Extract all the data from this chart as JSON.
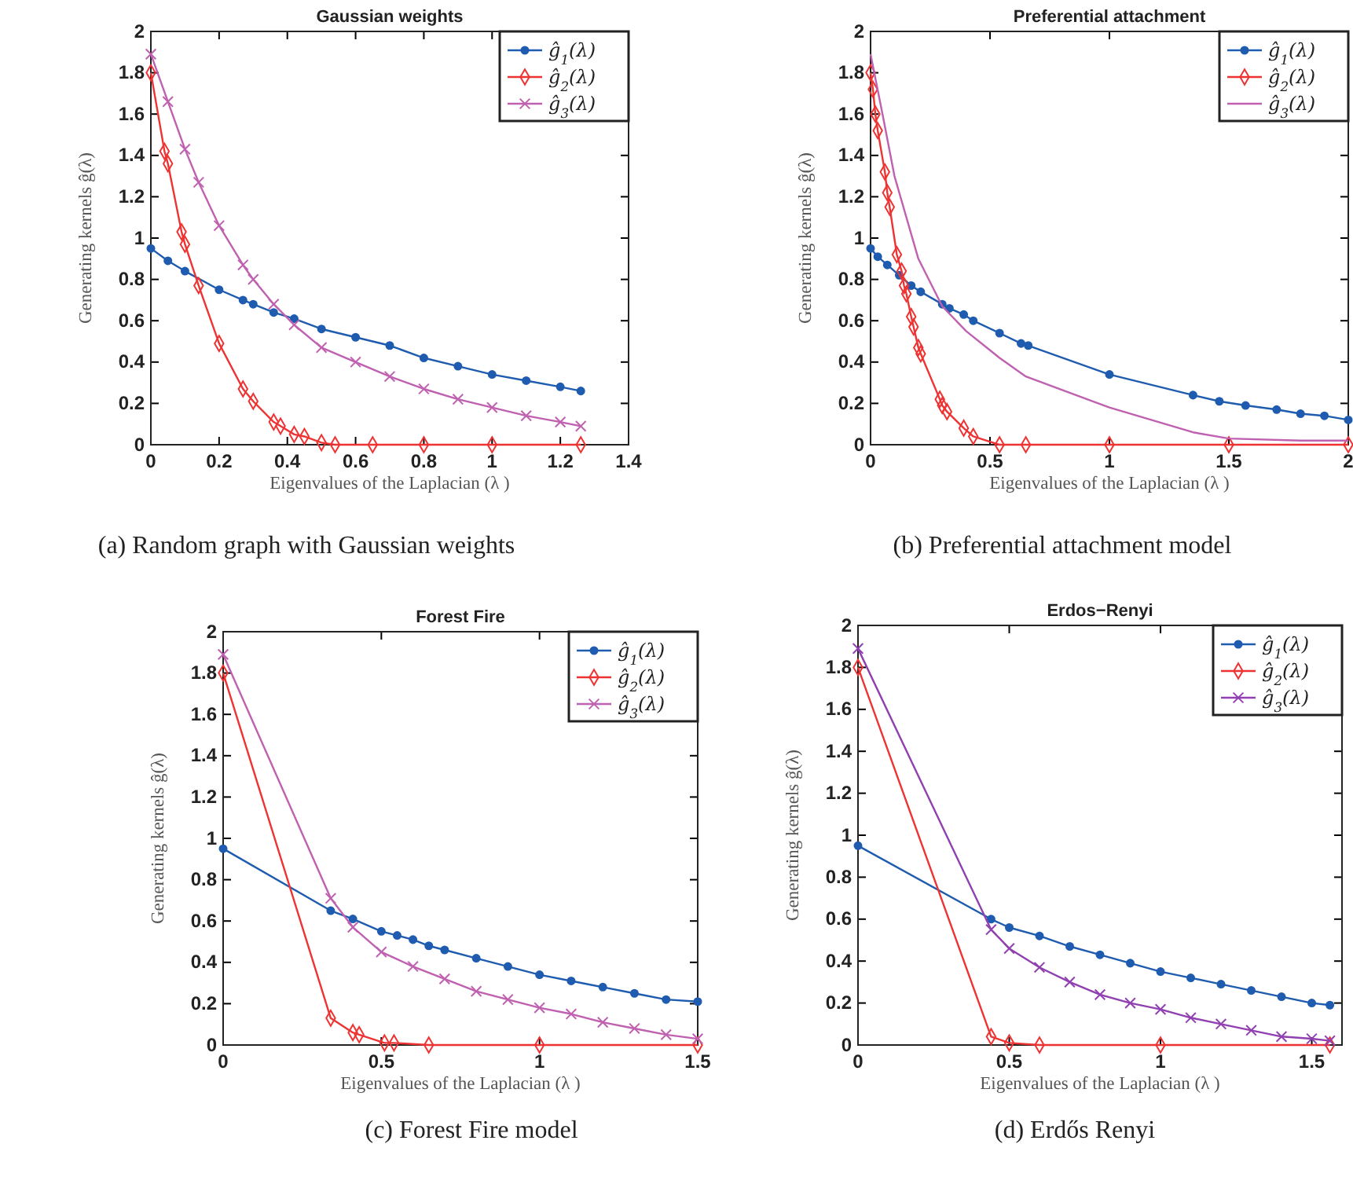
{
  "chart_data": [
    {
      "type": "line",
      "title": "Gaussian weights",
      "xlabel": "Eigenvalues of the Laplacian (λ )",
      "ylabel": "Generating kernels ĝ(λ)",
      "xlim": [
        0,
        1.4
      ],
      "xticks": [
        0,
        0.2,
        0.4,
        0.6,
        0.8,
        1,
        1.2,
        1.4
      ],
      "ylim": [
        0,
        2
      ],
      "yticks": [
        0,
        0.2,
        0.4,
        0.6,
        0.8,
        1,
        1.2,
        1.4,
        1.6,
        1.8,
        2
      ],
      "legend": "top right",
      "annotations": [
        "(a) Random graph with Gaussian weights"
      ],
      "series": [
        {
          "name": "ĝ$_{1}$(λ)",
          "color": "#1f5cb0",
          "marker": "circle",
          "x": [
            0,
            0.05,
            0.1,
            0.2,
            0.27,
            0.3,
            0.36,
            0.42,
            0.5,
            0.6,
            0.7,
            0.8,
            0.9,
            1.0,
            1.1,
            1.2,
            1.26
          ],
          "values": [
            0.95,
            0.89,
            0.84,
            0.75,
            0.7,
            0.68,
            0.64,
            0.61,
            0.56,
            0.52,
            0.48,
            0.42,
            0.38,
            0.34,
            0.31,
            0.28,
            0.26
          ]
        },
        {
          "name": "ĝ$_{2}$(λ)",
          "color": "#ee3333",
          "marker": "diamond",
          "x": [
            0,
            0.04,
            0.05,
            0.09,
            0.1,
            0.14,
            0.2,
            0.27,
            0.3,
            0.36,
            0.38,
            0.42,
            0.45,
            0.5,
            0.54,
            0.65,
            0.8,
            1.0,
            1.26
          ],
          "values": [
            1.8,
            1.42,
            1.36,
            1.03,
            0.97,
            0.77,
            0.49,
            0.27,
            0.21,
            0.11,
            0.09,
            0.05,
            0.04,
            0.01,
            0,
            0,
            0,
            0,
            0
          ]
        },
        {
          "name": "ĝ$_{3}$(λ)",
          "color": "#c060b0",
          "marker": "cross",
          "x": [
            0,
            0.05,
            0.1,
            0.14,
            0.2,
            0.27,
            0.3,
            0.36,
            0.42,
            0.5,
            0.6,
            0.7,
            0.8,
            0.9,
            1.0,
            1.1,
            1.2,
            1.26
          ],
          "values": [
            1.89,
            1.66,
            1.43,
            1.27,
            1.06,
            0.87,
            0.8,
            0.68,
            0.58,
            0.47,
            0.4,
            0.33,
            0.27,
            0.22,
            0.18,
            0.14,
            0.11,
            0.09
          ]
        }
      ]
    },
    {
      "type": "line",
      "title": "Preferential attachment",
      "xlabel": "Eigenvalues of the Laplacian (λ )",
      "ylabel": "Generating kernels ĝ(λ)",
      "xlim": [
        0,
        2
      ],
      "xticks": [
        0,
        0.5,
        1,
        1.5,
        2
      ],
      "ylim": [
        0,
        2
      ],
      "yticks": [
        0,
        0.2,
        0.4,
        0.6,
        0.8,
        1,
        1.2,
        1.4,
        1.6,
        1.8,
        2
      ],
      "legend": "top right",
      "annotations": [
        "(b) Preferential attachment model"
      ],
      "series": [
        {
          "name": "ĝ$_{1}$(λ)",
          "color": "#1f5cb0",
          "marker": "circle",
          "x": [
            0,
            0.03,
            0.07,
            0.12,
            0.17,
            0.21,
            0.3,
            0.33,
            0.39,
            0.43,
            0.54,
            0.63,
            0.66,
            1.0,
            1.35,
            1.46,
            1.57,
            1.7,
            1.8,
            1.9,
            2.0
          ],
          "values": [
            0.95,
            0.91,
            0.87,
            0.82,
            0.77,
            0.74,
            0.68,
            0.66,
            0.63,
            0.6,
            0.54,
            0.49,
            0.48,
            0.34,
            0.24,
            0.21,
            0.19,
            0.17,
            0.15,
            0.14,
            0.12
          ]
        },
        {
          "name": "ĝ$_{2}$(λ)",
          "color": "#ee3333",
          "marker": "diamond",
          "x": [
            0,
            0.01,
            0.02,
            0.03,
            0.06,
            0.07,
            0.08,
            0.11,
            0.13,
            0.14,
            0.15,
            0.17,
            0.18,
            0.2,
            0.21,
            0.29,
            0.3,
            0.32,
            0.39,
            0.43,
            0.54,
            0.65,
            1.0,
            1.5,
            2.0
          ],
          "values": [
            1.8,
            1.72,
            1.6,
            1.52,
            1.32,
            1.22,
            1.15,
            0.92,
            0.84,
            0.77,
            0.73,
            0.62,
            0.57,
            0.47,
            0.44,
            0.22,
            0.19,
            0.16,
            0.08,
            0.04,
            0,
            0,
            0,
            0,
            0
          ]
        },
        {
          "name": "ĝ$_{3}$(λ)",
          "color": "#c060b0",
          "marker": "none",
          "x": [
            0,
            0.05,
            0.1,
            0.2,
            0.3,
            0.4,
            0.54,
            0.65,
            1.0,
            1.35,
            1.5,
            1.8,
            2.0
          ],
          "values": [
            1.89,
            1.6,
            1.3,
            0.9,
            0.67,
            0.55,
            0.42,
            0.33,
            0.18,
            0.06,
            0.03,
            0.02,
            0.02
          ]
        }
      ]
    },
    {
      "type": "line",
      "title": "Forest Fire",
      "xlabel": "Eigenvalues of the Laplacian (λ )",
      "ylabel": "Generating kernels ĝ(λ)",
      "xlim": [
        0,
        1.5
      ],
      "xticks": [
        0,
        0.5,
        1,
        1.5
      ],
      "ylim": [
        0,
        2
      ],
      "yticks": [
        0,
        0.2,
        0.4,
        0.6,
        0.8,
        1,
        1.2,
        1.4,
        1.6,
        1.8,
        2
      ],
      "legend": "top right",
      "annotations": [
        "(c) Forest Fire model"
      ],
      "series": [
        {
          "name": "ĝ$_{1}$(λ)",
          "color": "#1f5cb0",
          "marker": "circle",
          "x": [
            0,
            0.34,
            0.41,
            0.5,
            0.55,
            0.6,
            0.65,
            0.7,
            0.8,
            0.9,
            1.0,
            1.1,
            1.2,
            1.3,
            1.4,
            1.5
          ],
          "values": [
            0.95,
            0.65,
            0.61,
            0.55,
            0.53,
            0.51,
            0.48,
            0.46,
            0.42,
            0.38,
            0.34,
            0.31,
            0.28,
            0.25,
            0.22,
            0.21
          ]
        },
        {
          "name": "ĝ$_{2}$(λ)",
          "color": "#ee3333",
          "marker": "diamond",
          "x": [
            0,
            0.34,
            0.41,
            0.43,
            0.51,
            0.54,
            0.65,
            1.0,
            1.5
          ],
          "values": [
            1.8,
            0.13,
            0.06,
            0.05,
            0.01,
            0.01,
            0,
            0,
            0
          ]
        },
        {
          "name": "ĝ$_{3}$(λ)",
          "color": "#c060b0",
          "marker": "cross",
          "x": [
            0,
            0.34,
            0.41,
            0.5,
            0.6,
            0.7,
            0.8,
            0.9,
            1.0,
            1.1,
            1.2,
            1.3,
            1.4,
            1.5
          ],
          "values": [
            1.89,
            0.71,
            0.57,
            0.45,
            0.38,
            0.32,
            0.26,
            0.22,
            0.18,
            0.15,
            0.11,
            0.08,
            0.05,
            0.03
          ]
        }
      ]
    },
    {
      "type": "line",
      "title": "Erdos−Renyi",
      "xlabel": "Eigenvalues of the Laplacian (λ )",
      "ylabel": "Generating kernels ĝ(λ)",
      "xlim": [
        0,
        1.6
      ],
      "xticks": [
        0,
        0.5,
        1,
        1.5
      ],
      "ylim": [
        0,
        2
      ],
      "yticks": [
        0,
        0.2,
        0.4,
        0.6,
        0.8,
        1,
        1.2,
        1.4,
        1.6,
        1.8,
        2
      ],
      "legend": "top right",
      "annotations": [
        "(d) Erdős Renyi"
      ],
      "series": [
        {
          "name": "ĝ$_{1}$(λ)",
          "color": "#1f5cb0",
          "marker": "circle",
          "x": [
            0,
            0.44,
            0.5,
            0.6,
            0.7,
            0.8,
            0.9,
            1.0,
            1.1,
            1.2,
            1.3,
            1.4,
            1.5,
            1.56
          ],
          "values": [
            0.95,
            0.6,
            0.56,
            0.52,
            0.47,
            0.43,
            0.39,
            0.35,
            0.32,
            0.29,
            0.26,
            0.23,
            0.2,
            0.19
          ]
        },
        {
          "name": "ĝ$_{2}$(λ)",
          "color": "#ee3333",
          "marker": "diamond",
          "x": [
            0,
            0.44,
            0.5,
            0.6,
            1.0,
            1.56
          ],
          "values": [
            1.8,
            0.04,
            0.01,
            0,
            0,
            0
          ]
        },
        {
          "name": "ĝ$_{3}$(λ)",
          "color": "#9040b0",
          "marker": "cross",
          "x": [
            0,
            0.44,
            0.5,
            0.6,
            0.7,
            0.8,
            0.9,
            1.0,
            1.1,
            1.2,
            1.3,
            1.4,
            1.5,
            1.56
          ],
          "values": [
            1.89,
            0.55,
            0.46,
            0.37,
            0.3,
            0.24,
            0.2,
            0.17,
            0.13,
            0.1,
            0.07,
            0.04,
            0.03,
            0.02
          ]
        }
      ]
    }
  ]
}
